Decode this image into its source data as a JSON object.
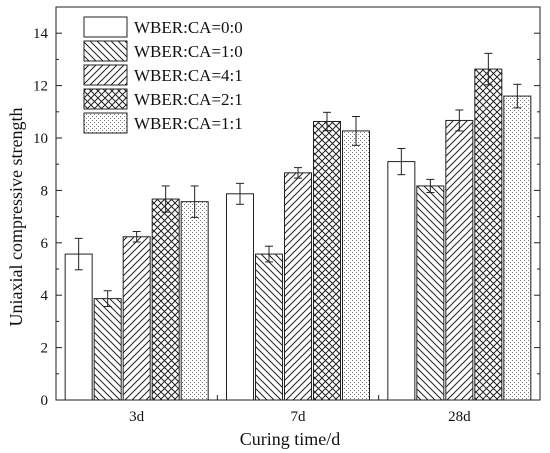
{
  "chart_data": {
    "type": "bar",
    "title": "",
    "xlabel": "Curing time/d",
    "ylabel": "Uniaxial compressive strength",
    "ylim": [
      0,
      15
    ],
    "yticks": [
      0,
      2,
      4,
      6,
      8,
      10,
      12,
      14
    ],
    "categories": [
      "3d",
      "7d",
      "28d"
    ],
    "legend_placement": "top-left",
    "grid": false,
    "series": [
      {
        "name": "WBER:CA=0:0",
        "pattern": "none",
        "values": [
          5.57,
          7.87,
          9.1
        ],
        "errors": [
          0.6,
          0.4,
          0.5
        ]
      },
      {
        "name": "WBER:CA=1:0",
        "pattern": "diag-back",
        "values": [
          3.87,
          5.57,
          8.17
        ],
        "errors": [
          0.3,
          0.3,
          0.25
        ]
      },
      {
        "name": "WBER:CA=4:1",
        "pattern": "diag-fwd",
        "values": [
          6.23,
          8.67,
          10.67
        ],
        "errors": [
          0.2,
          0.2,
          0.4
        ]
      },
      {
        "name": "WBER:CA=2:1",
        "pattern": "cross",
        "values": [
          7.67,
          10.63,
          12.63
        ],
        "errors": [
          0.5,
          0.35,
          0.6
        ]
      },
      {
        "name": "WBER:CA=1:1",
        "pattern": "dots",
        "values": [
          7.57,
          10.27,
          11.6
        ],
        "errors": [
          0.6,
          0.55,
          0.45
        ]
      }
    ]
  }
}
